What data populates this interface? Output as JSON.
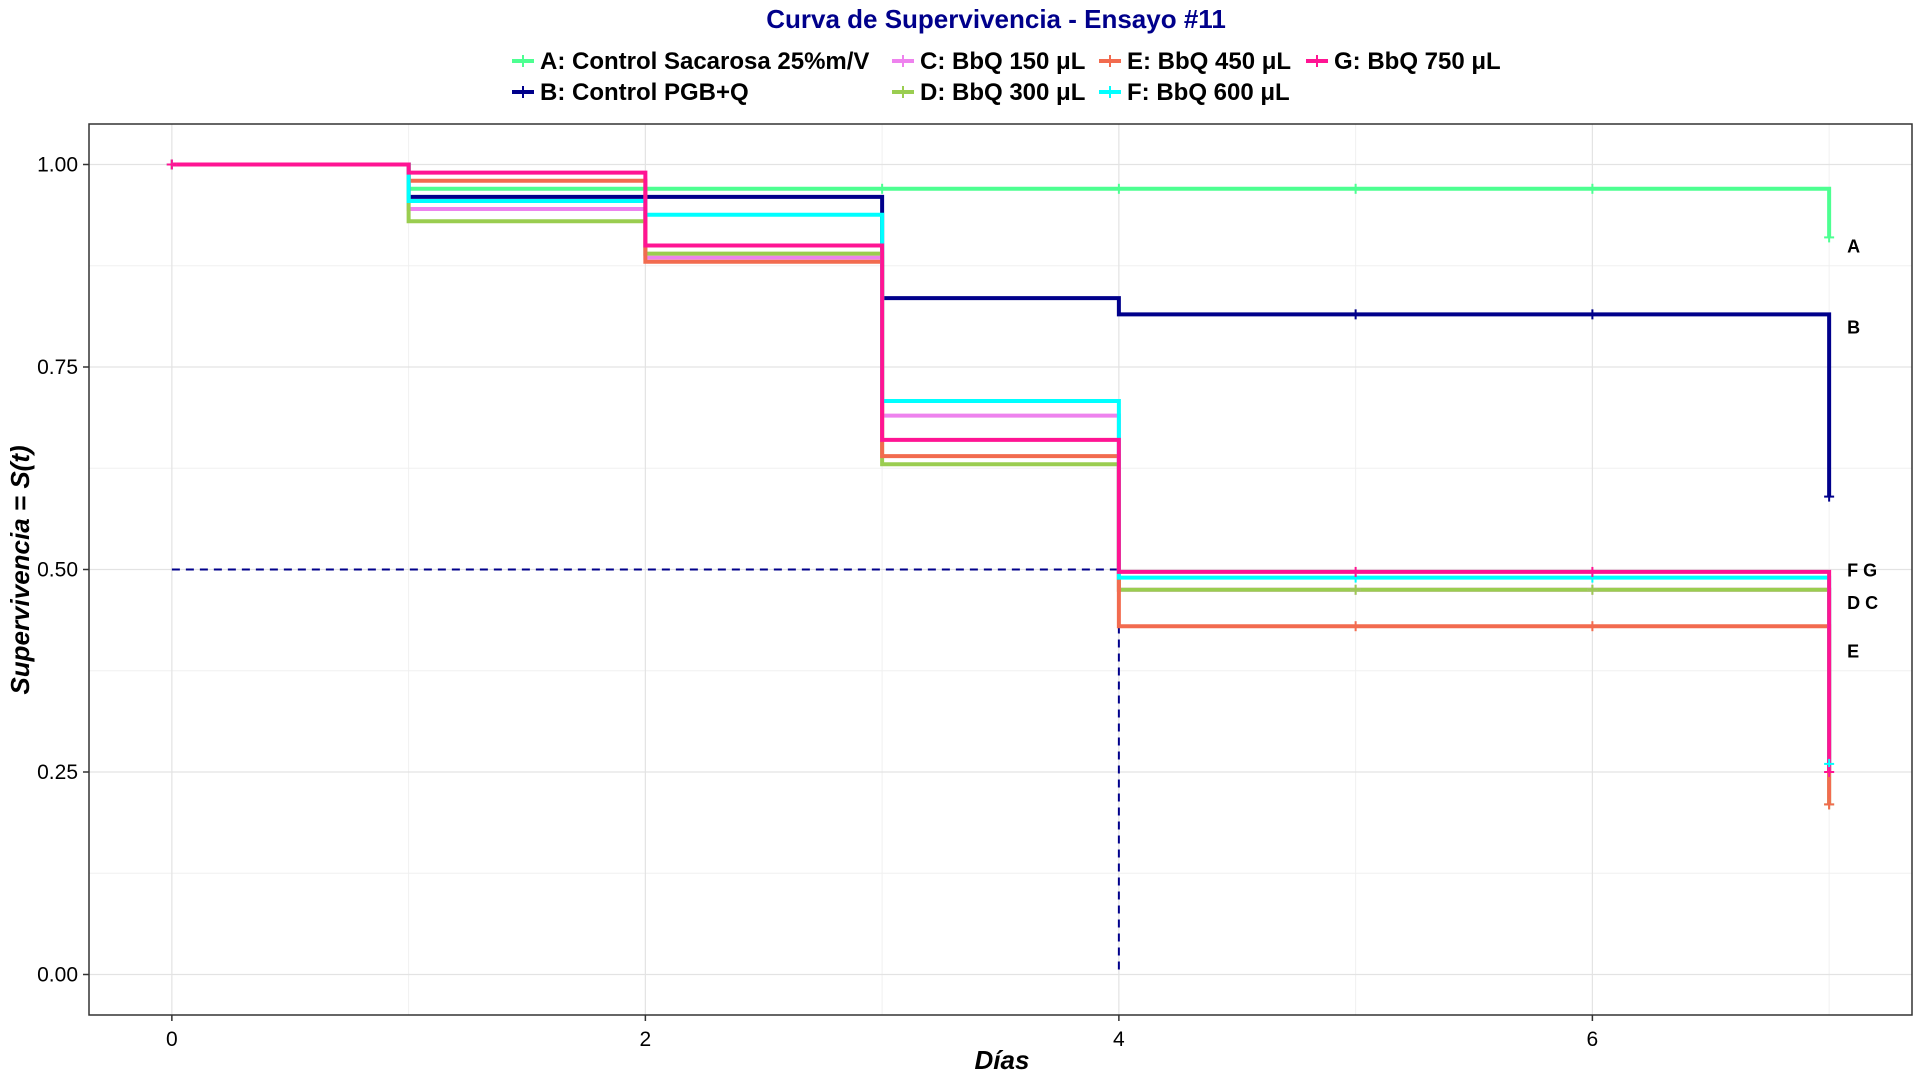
{
  "chart_data": {
    "type": "line",
    "step": true,
    "title": "Curva de Supervivencia - Ensayo #11",
    "xlabel": "Días",
    "ylabel": "Supervivencia = S(t)",
    "xlim": [
      -0.35,
      7.35
    ],
    "ylim": [
      -0.05,
      1.05
    ],
    "x_ticks": [
      0,
      2,
      4,
      6
    ],
    "x_tick_labels": [
      "0",
      "2",
      "4",
      "6"
    ],
    "y_ticks": [
      0,
      0.25,
      0.5,
      0.75,
      1
    ],
    "y_tick_labels": [
      "0.00",
      "0.25",
      "0.50",
      "0.75",
      "1.00"
    ],
    "grid": true,
    "legend_position": "top",
    "median_line": {
      "y": 0.5,
      "x": 4,
      "color": "#00008B",
      "style": "dashed"
    },
    "series": [
      {
        "key": "A",
        "name": "A: Control  Sacarosa 25%m/V",
        "color": "#4DFF91",
        "x": [
          0,
          1,
          2,
          3,
          4,
          5,
          6,
          7,
          7
        ],
        "y": [
          1.0,
          0.97,
          0.97,
          0.97,
          0.97,
          0.97,
          0.97,
          0.97,
          0.91
        ],
        "censor_x": [
          0,
          3,
          4,
          5,
          6,
          7
        ],
        "censor_y": [
          1.0,
          0.97,
          0.97,
          0.97,
          0.97,
          0.91
        ]
      },
      {
        "key": "B",
        "name": "B: Control  PGB+Q",
        "color": "#00008B",
        "x": [
          0,
          1,
          2,
          3,
          4,
          5,
          6,
          7,
          7
        ],
        "y": [
          1.0,
          0.96,
          0.96,
          0.835,
          0.815,
          0.815,
          0.815,
          0.815,
          0.59
        ],
        "censor_x": [
          0,
          5,
          6,
          7
        ],
        "censor_y": [
          1.0,
          0.815,
          0.815,
          0.59
        ]
      },
      {
        "key": "C",
        "name": "C: BbQ 150 μL",
        "color": "#EE82EE",
        "x": [
          0,
          1,
          2,
          3,
          4,
          5,
          6,
          7,
          7
        ],
        "y": [
          1.0,
          0.945,
          0.885,
          0.69,
          0.475,
          0.475,
          0.475,
          0.475,
          0.25
        ],
        "censor_x": [
          0,
          5,
          6,
          7
        ],
        "censor_y": [
          1.0,
          0.475,
          0.475,
          0.25
        ]
      },
      {
        "key": "D",
        "name": "D: BbQ 300 μL",
        "color": "#9ACD50",
        "x": [
          0,
          1,
          2,
          3,
          4,
          5,
          6,
          7,
          7
        ],
        "y": [
          1.0,
          0.93,
          0.89,
          0.63,
          0.475,
          0.475,
          0.475,
          0.475,
          0.21
        ],
        "censor_x": [
          0,
          5,
          6,
          7
        ],
        "censor_y": [
          1.0,
          0.475,
          0.475,
          0.21
        ]
      },
      {
        "key": "E",
        "name": "E: BbQ 450 μL",
        "color": "#F26B4F",
        "x": [
          0,
          1,
          2,
          3,
          4,
          5,
          6,
          7,
          7
        ],
        "y": [
          1.0,
          0.98,
          0.88,
          0.64,
          0.43,
          0.43,
          0.43,
          0.43,
          0.21
        ],
        "censor_x": [
          0,
          5,
          6,
          7
        ],
        "censor_y": [
          1.0,
          0.43,
          0.43,
          0.21
        ]
      },
      {
        "key": "F",
        "name": "F: BbQ 600 μL",
        "color": "#00FFFF",
        "x": [
          0,
          1,
          2,
          3,
          4,
          5,
          6,
          7,
          7
        ],
        "y": [
          1.0,
          0.955,
          0.938,
          0.708,
          0.49,
          0.49,
          0.49,
          0.49,
          0.26
        ],
        "censor_x": [
          0,
          5,
          6,
          7
        ],
        "censor_y": [
          1.0,
          0.49,
          0.49,
          0.26
        ]
      },
      {
        "key": "G",
        "name": "G: BbQ 750 μL",
        "color": "#FF1493",
        "x": [
          0,
          1,
          2,
          3,
          4,
          5,
          6,
          7,
          7
        ],
        "y": [
          1.0,
          0.99,
          0.9,
          0.66,
          0.497,
          0.497,
          0.497,
          0.497,
          0.25
        ],
        "censor_x": [
          0,
          5,
          6,
          7
        ],
        "censor_y": [
          1.0,
          0.497,
          0.497,
          0.25
        ]
      }
    ],
    "end_labels": [
      {
        "text": "A",
        "y": 0.9
      },
      {
        "text": "B",
        "y": 0.8
      },
      {
        "text": "F  G",
        "y": 0.5
      },
      {
        "text": "D  C",
        "y": 0.46
      },
      {
        "text": "E",
        "y": 0.4
      }
    ]
  }
}
